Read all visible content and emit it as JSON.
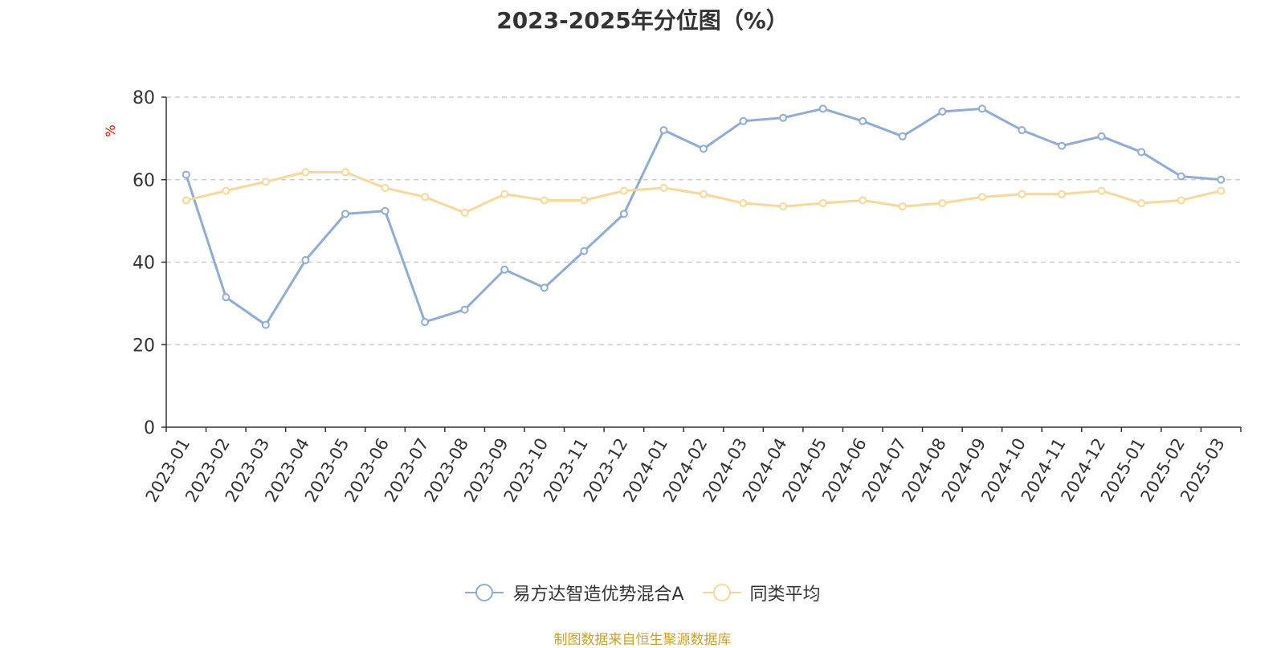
{
  "chart_data": {
    "type": "line",
    "title": "2023-2025年分位图（%）",
    "ylabel": "%",
    "xlabel": "",
    "ylim": [
      0,
      80
    ],
    "yticks": [
      0,
      20,
      40,
      60,
      80
    ],
    "grid": true,
    "legend_position": "bottom",
    "categories": [
      "2023-01",
      "2023-02",
      "2023-03",
      "2023-04",
      "2023-05",
      "2023-06",
      "2023-07",
      "2023-08",
      "2023-09",
      "2023-10",
      "2023-11",
      "2023-12",
      "2024-01",
      "2024-02",
      "2024-03",
      "2024-04",
      "2024-05",
      "2024-06",
      "2024-07",
      "2024-08",
      "2024-09",
      "2024-10",
      "2024-11",
      "2024-12",
      "2025-01",
      "2025-02",
      "2025-03"
    ],
    "series": [
      {
        "name": "易方达智造优势混合A",
        "color": "#8eacd9",
        "values": [
          61.2,
          31.5,
          24.8,
          40.5,
          51.7,
          52.4,
          25.5,
          28.5,
          38.2,
          33.8,
          42.7,
          51.7,
          72.0,
          67.5,
          74.2,
          75.0,
          77.2,
          74.2,
          70.5,
          76.5,
          77.2,
          72.0,
          68.2,
          70.5,
          66.7,
          60.8,
          60.0
        ]
      },
      {
        "name": "同类平均",
        "color": "#fad797",
        "values": [
          55.0,
          57.3,
          59.5,
          61.8,
          61.8,
          58.0,
          55.8,
          52.0,
          56.5,
          55.0,
          55.0,
          57.3,
          58.0,
          56.5,
          54.3,
          53.5,
          54.3,
          55.0,
          53.5,
          54.3,
          55.8,
          56.5,
          56.5,
          57.3,
          54.3,
          55.0,
          57.3
        ]
      }
    ]
  },
  "source": "制图数据来自恒生聚源数据库"
}
